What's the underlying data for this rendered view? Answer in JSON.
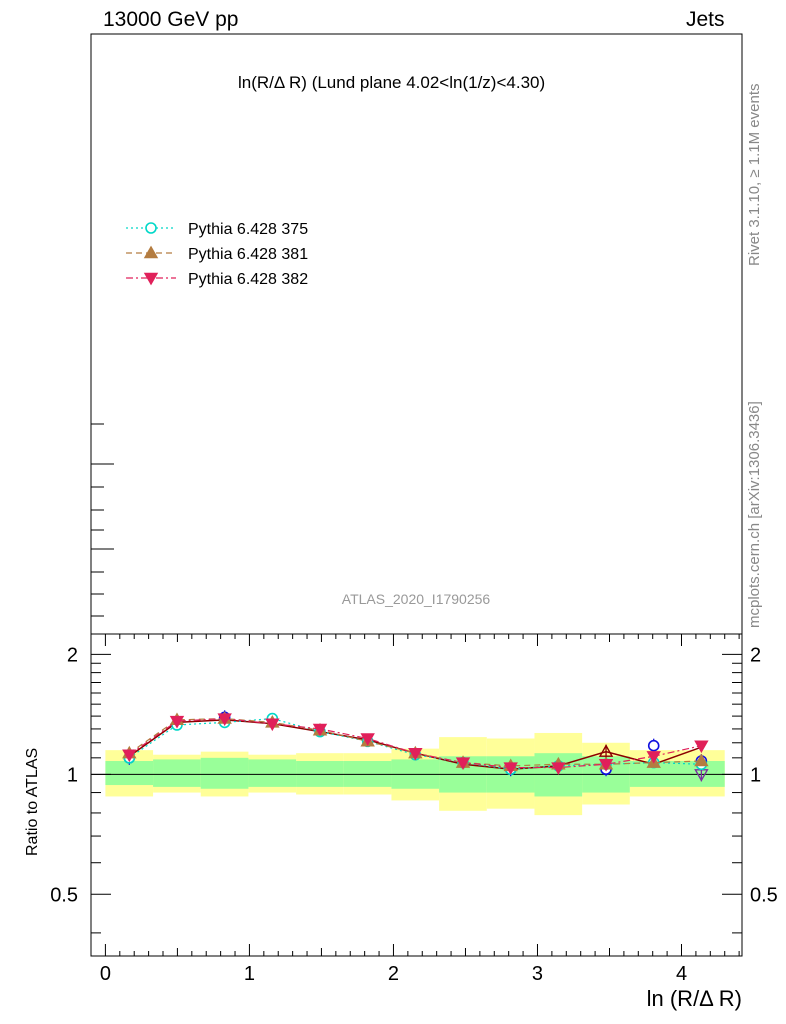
{
  "header": {
    "left": "13000 GeV pp",
    "right": "Jets"
  },
  "side_text": {
    "rivet": "Rivet 3.1.10, ≥ 1.1M events",
    "mcplots": "mcplots.cern.ch [arXiv:1306.3436]"
  },
  "colors": {
    "band_inner": "#99ff99",
    "band_outer": "#ffff99",
    "reference": "#8b0000"
  },
  "chart_data": {
    "type": "line",
    "title": "ln(R/Δ R) (Lund plane 4.02<ln(1/z)<4.30)",
    "watermark": "ATLAS_2020_I1790256",
    "xlabel": "ln (R/Δ R)",
    "ylabel": "Ratio to ATLAS",
    "xlim": [
      -0.1,
      4.42
    ],
    "ylim": [
      0.35,
      2.25
    ],
    "y_scale": "log",
    "xticks": [
      "0",
      "1",
      "2",
      "3",
      "4"
    ],
    "yticks": [
      "0.5",
      "1",
      "2"
    ],
    "legend_position": "top-left",
    "x": [
      0.166,
      0.497,
      0.828,
      1.159,
      1.49,
      1.821,
      2.152,
      2.483,
      2.814,
      3.145,
      3.476,
      3.807,
      4.138
    ],
    "bin_edges": [
      0.0,
      0.331,
      0.662,
      0.993,
      1.324,
      1.655,
      1.986,
      2.317,
      2.648,
      2.979,
      3.31,
      3.641,
      3.972,
      4.3
    ],
    "band_inner": [
      [
        0.94,
        1.08
      ],
      [
        0.93,
        1.09
      ],
      [
        0.92,
        1.1
      ],
      [
        0.93,
        1.09
      ],
      [
        0.93,
        1.08
      ],
      [
        0.93,
        1.08
      ],
      [
        0.92,
        1.09
      ],
      [
        0.9,
        1.11
      ],
      [
        0.9,
        1.11
      ],
      [
        0.88,
        1.13
      ],
      [
        0.9,
        1.11
      ],
      [
        0.93,
        1.08
      ],
      [
        0.93,
        1.08
      ]
    ],
    "band_outer": [
      [
        0.88,
        1.15
      ],
      [
        0.9,
        1.12
      ],
      [
        0.88,
        1.14
      ],
      [
        0.9,
        1.12
      ],
      [
        0.89,
        1.13
      ],
      [
        0.89,
        1.13
      ],
      [
        0.86,
        1.16
      ],
      [
        0.81,
        1.24
      ],
      [
        0.82,
        1.23
      ],
      [
        0.79,
        1.27
      ],
      [
        0.84,
        1.2
      ],
      [
        0.88,
        1.15
      ],
      [
        0.88,
        1.15
      ]
    ],
    "reference_line": [
      1.11,
      1.35,
      1.37,
      1.34,
      1.28,
      1.22,
      1.13,
      1.06,
      1.03,
      1.05,
      1.14,
      1.06,
      1.17
    ],
    "series": [
      {
        "name": "Pythia 6.428 375",
        "color": "#00d8c8",
        "marker": "open-circle",
        "dash": "2 3",
        "values": [
          1.1,
          1.33,
          1.35,
          1.38,
          1.28,
          1.21,
          1.12,
          1.07,
          1.03,
          1.05,
          1.06,
          1.07,
          1.06
        ]
      },
      {
        "name": "Pythia 6.428 381",
        "color": "#b47c40",
        "marker": "filled-triangle-up",
        "dash": "6 4",
        "values": [
          1.13,
          1.37,
          1.38,
          1.35,
          1.29,
          1.21,
          1.13,
          1.07,
          1.05,
          1.06,
          1.06,
          1.07,
          1.08
        ]
      },
      {
        "name": "Pythia 6.428 382",
        "color": "#e0205a",
        "marker": "filled-triangle-down",
        "dash": "7 3 2 3",
        "values": [
          1.12,
          1.36,
          1.38,
          1.34,
          1.3,
          1.23,
          1.13,
          1.07,
          1.04,
          1.04,
          1.06,
          1.11,
          1.18
        ]
      }
    ],
    "other_points": [
      {
        "color": "#1010e0",
        "marker": "open-circle",
        "x": [
          0.166,
          0.828,
          2.814,
          3.476,
          3.807,
          4.138
        ],
        "values": [
          1.1,
          1.39,
          1.03,
          1.03,
          1.18,
          1.08
        ]
      },
      {
        "color": "#7a30a0",
        "marker": "open-triangle-down",
        "x": [
          4.138
        ],
        "values": [
          1.0
        ]
      },
      {
        "color": "#8b0000",
        "marker": "open-triangle-up",
        "x": [
          3.476
        ],
        "values": [
          1.14
        ]
      }
    ]
  }
}
